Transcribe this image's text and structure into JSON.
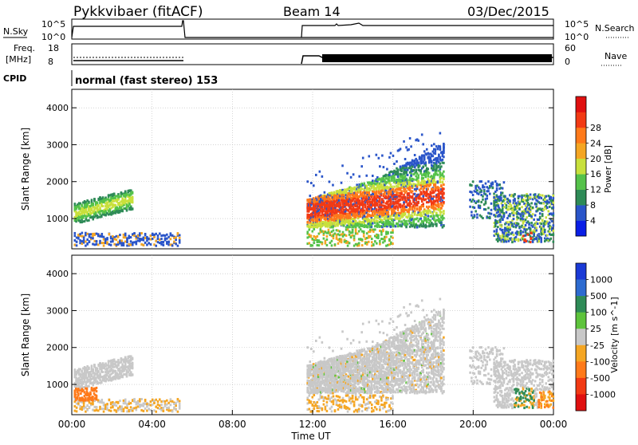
{
  "header": {
    "station": "Pykkvibaer (fitACF)",
    "beam": "Beam 14",
    "date": "03/Dec/2015"
  },
  "status_panels": {
    "nsky_label": "N.Sky",
    "nsearch_label": "N.Search",
    "noise_ticks": [
      "10^5",
      "10^0"
    ],
    "freq_label_1": "Freq.",
    "freq_label_2": "[MHz]",
    "freq_ticks": [
      "18",
      "8"
    ],
    "nave_label": "Nave",
    "nave_ticks": [
      "60",
      "0"
    ],
    "cpid_label": "CPID",
    "cpid_value": "normal (fast stereo) 153"
  },
  "colors": {
    "data_gap": "#ffffff",
    "ground_scatter": "#c8c8c8"
  },
  "chart_data": [
    {
      "type": "heatmap",
      "parameter": "Power",
      "ylabel": "Slant Range [km]",
      "yticks": [
        1000,
        2000,
        3000,
        4000
      ],
      "ylim": [
        180,
        4500
      ],
      "colorbar_label": "Power [dB]",
      "colorbar_ticks": [
        "4",
        "8",
        "12",
        "16",
        "20",
        "24",
        "28"
      ],
      "colorbar_colors": [
        "#0a1ee6",
        "#2a55c9",
        "#2e8b57",
        "#55c24a",
        "#c8e03c",
        "#f5a623",
        "#ff7a1a",
        "#f23a14",
        "#e01010"
      ],
      "grid": true
    },
    {
      "type": "heatmap",
      "parameter": "Velocity",
      "ylabel": "Slant Range [km]",
      "yticks": [
        1000,
        2000,
        3000,
        4000
      ],
      "ylim": [
        180,
        4500
      ],
      "colorbar_label": "Velocity [m s^-1]",
      "colorbar_ticks": [
        "1000",
        "500",
        "100",
        "25",
        "-25",
        "-100",
        "-500",
        "-1000"
      ],
      "colorbar_colors": [
        "#1a3ad6",
        "#2d6bd0",
        "#2e8b57",
        "#5ec43c",
        "#c8c8c8",
        "#f5a623",
        "#ff7a1a",
        "#f23a14",
        "#e01010"
      ],
      "grid": true
    }
  ],
  "time_axis": {
    "ticks": [
      "00:00",
      "04:00",
      "08:00",
      "12:00",
      "16:00",
      "20:00",
      "00:00"
    ],
    "xlabel": "Time UT",
    "xlim_hours": [
      0,
      24
    ]
  }
}
